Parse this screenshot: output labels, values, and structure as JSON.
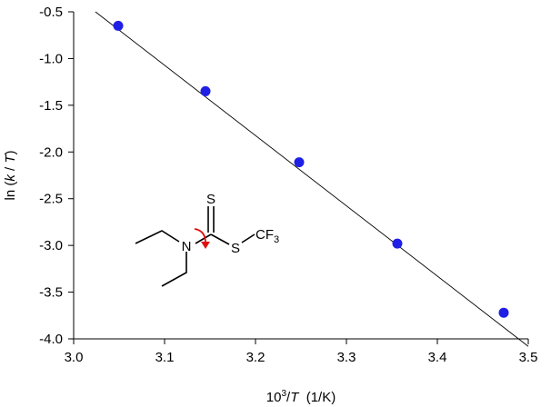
{
  "chart_data": {
    "type": "scatter",
    "x": [
      3.049,
      3.145,
      3.248,
      3.356,
      3.473
    ],
    "y": [
      -0.65,
      -1.35,
      -2.11,
      -2.98,
      -3.72
    ],
    "fit_line": {
      "x": [
        3.0,
        3.5
      ],
      "y": [
        -0.32,
        -4.08
      ]
    },
    "xlim": [
      3.0,
      3.5
    ],
    "ylim": [
      -4.0,
      -0.5
    ],
    "x_ticks": [
      "3.0",
      "3.1",
      "3.2",
      "3.3",
      "3.4",
      "3.5"
    ],
    "y_ticks": [
      "-0.5",
      "-1.0",
      "-1.5",
      "-2.0",
      "-2.5",
      "-3.0",
      "-3.5",
      "-4.0"
    ],
    "xlabel": {
      "prefix": "10",
      "sup": "3",
      "mid": "/",
      "var": "T",
      "suffix": "  (1/K)"
    },
    "ylabel": {
      "prefix": "ln (",
      "var1": "k",
      "mid": " / ",
      "var2": "T",
      "suffix": ")"
    },
    "grid": false,
    "legend": "none",
    "colors": {
      "point": "#1f1fe6",
      "line": "#000000",
      "arrow": "#e01010"
    }
  },
  "molecule": {
    "atom_n": "N",
    "atom_s_top": "S",
    "atom_s_right": "S",
    "group_cf": "CF",
    "group_sub": "3"
  }
}
